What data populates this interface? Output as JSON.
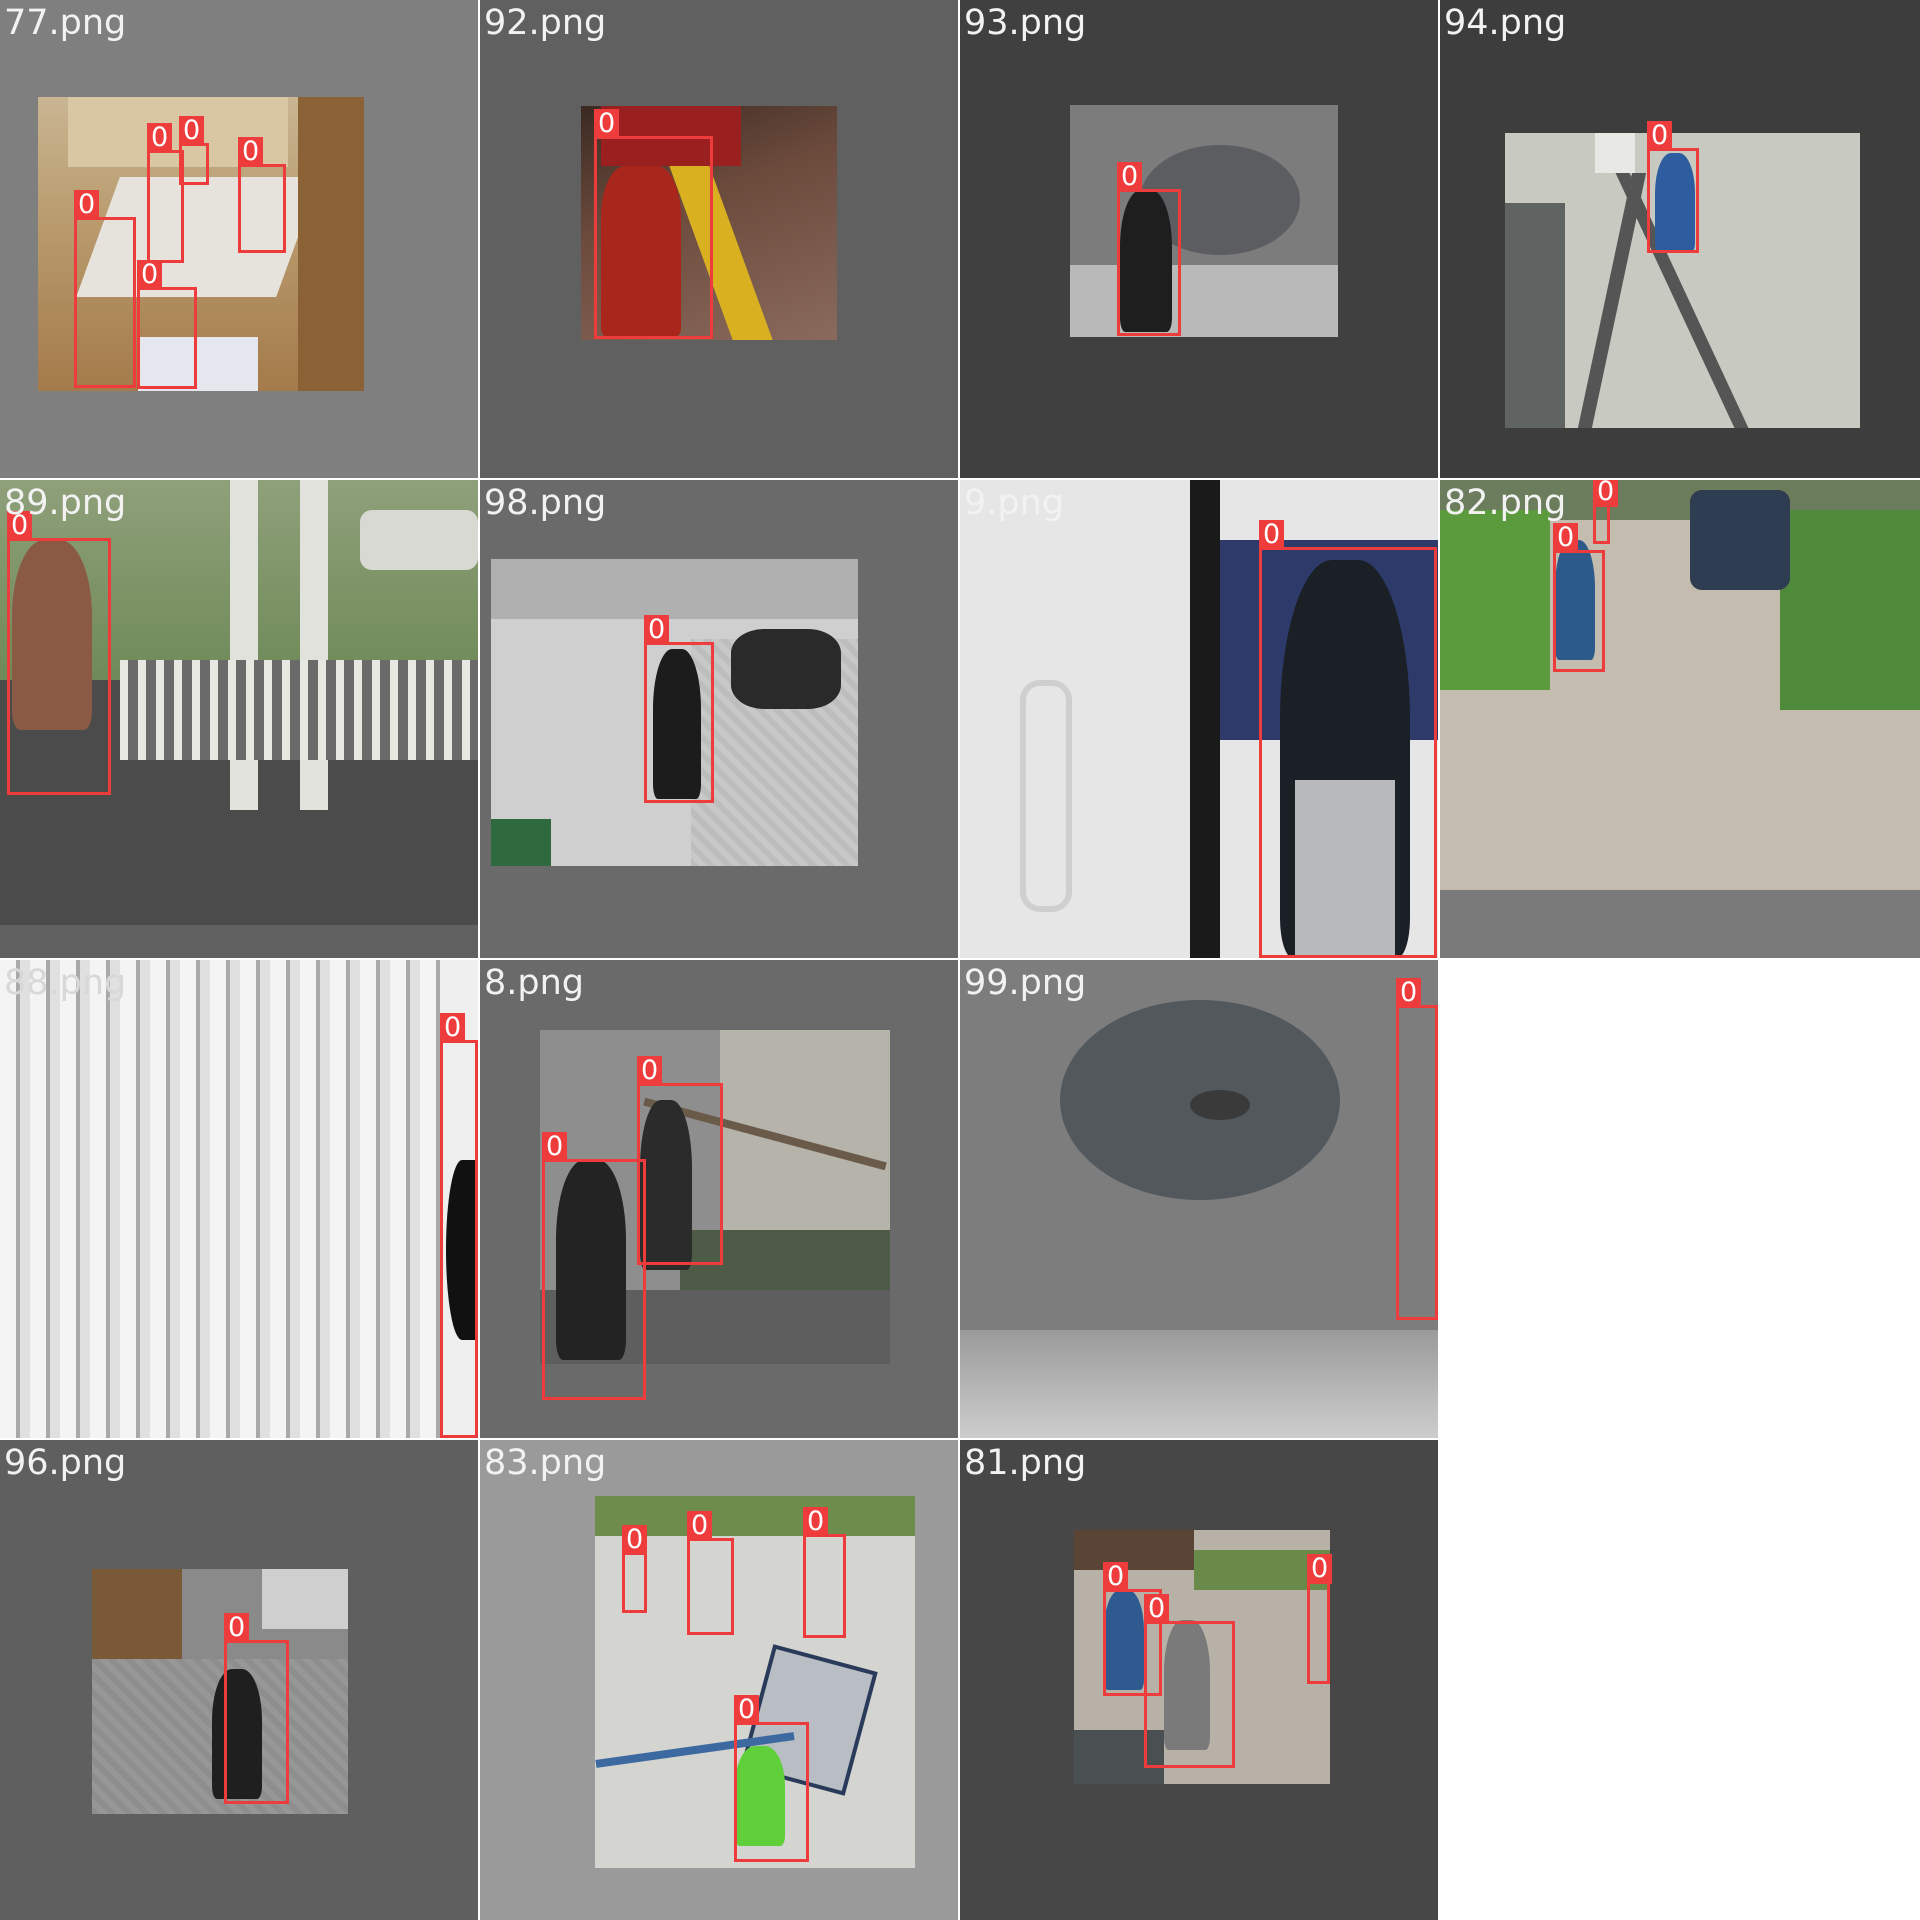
{
  "colors": {
    "box": "#ee3c3c",
    "label_text": "#f2f2f2",
    "padding_gray_mid": "#7f7f7f",
    "padding_gray_dark": "#5a5a5a",
    "padding_gray_darker": "#404040",
    "empty_cell": "#ffffff"
  },
  "class_label": "0",
  "tiles": [
    {
      "id": "t77",
      "label": "77.png",
      "box_count": 5,
      "pad": "#7f7f7f"
    },
    {
      "id": "t92",
      "label": "92.png",
      "box_count": 1,
      "pad": "#606060"
    },
    {
      "id": "t93",
      "label": "93.png",
      "box_count": 1,
      "pad": "#404040"
    },
    {
      "id": "t94",
      "label": "94.png",
      "box_count": 1,
      "pad": "#3d3d3d"
    },
    {
      "id": "t89",
      "label": "89.png",
      "box_count": 1,
      "pad": "#606060"
    },
    {
      "id": "t98",
      "label": "98.png",
      "box_count": 1,
      "pad": "#6a6a6a"
    },
    {
      "id": "t9",
      "label": "9.png",
      "box_count": 1,
      "pad": "#e8e8e8"
    },
    {
      "id": "t82",
      "label": "82.png",
      "box_count": 2,
      "pad": "#7a7a7a"
    },
    {
      "id": "t88",
      "label": "88.png",
      "box_count": 1,
      "pad": "#dcdcdc"
    },
    {
      "id": "t8",
      "label": "8.png",
      "box_count": 2,
      "pad": "#6a6a6a"
    },
    {
      "id": "t99",
      "label": "99.png",
      "box_count": 1,
      "pad": "#555555"
    },
    {
      "id": "t96",
      "label": "96.png",
      "box_count": 1,
      "pad": "#5f5f5f"
    },
    {
      "id": "t83",
      "label": "83.png",
      "box_count": 4,
      "pad": "#9a9a9a"
    },
    {
      "id": "t81",
      "label": "81.png",
      "box_count": 3,
      "pad": "#474747"
    }
  ]
}
